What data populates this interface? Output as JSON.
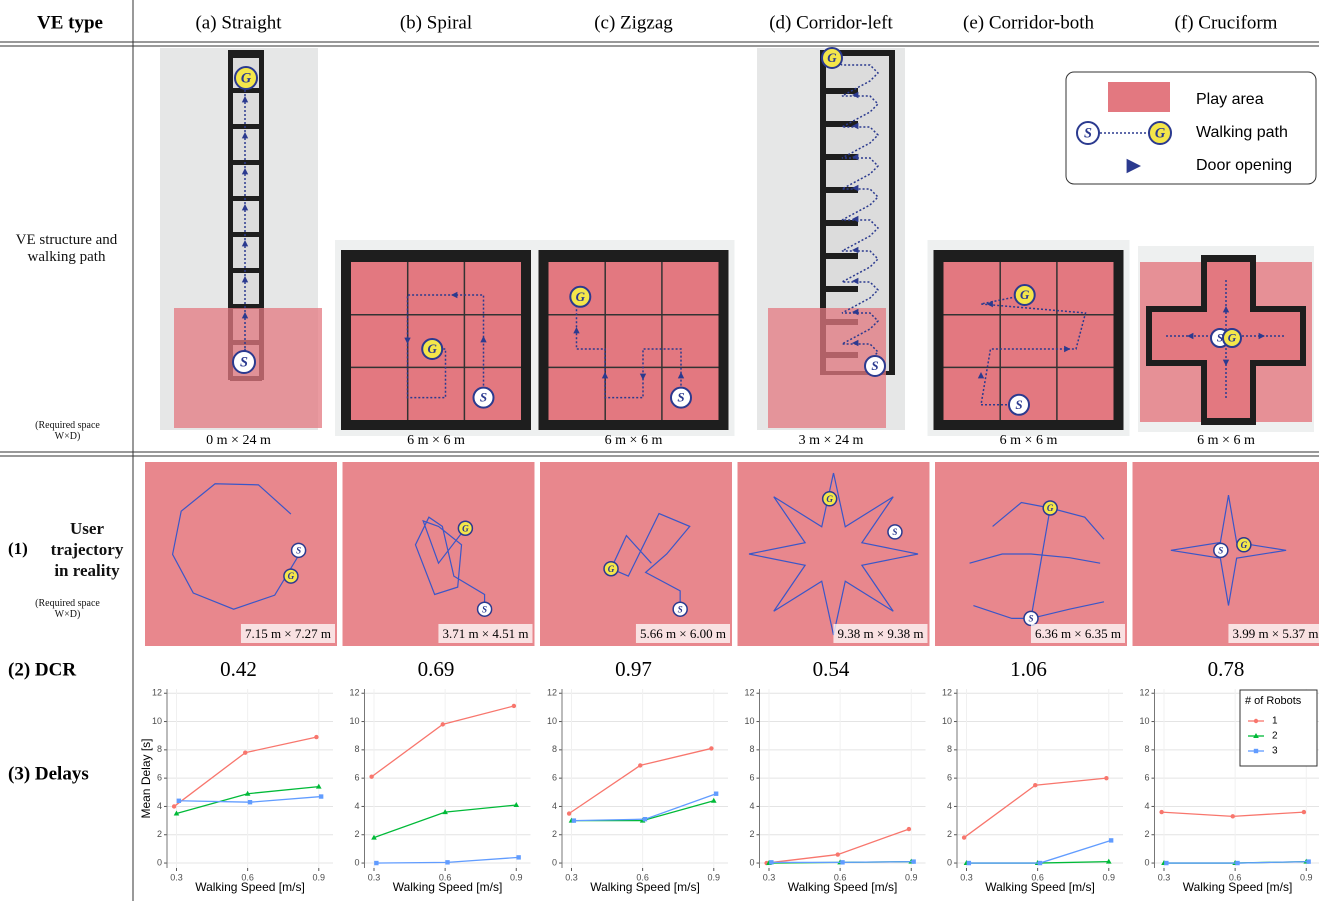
{
  "header": {
    "corner": "VE type",
    "columns": [
      "(a) Straight",
      "(b) Spiral",
      "(c) Zigzag",
      "(d) Corridor-left",
      "(e) Corridor-both",
      "(f) Cruciform"
    ]
  },
  "structure": {
    "label": "VE structure and walking path",
    "note": "(Required space W×D)",
    "sizes": [
      "0 m × 24 m",
      "6 m × 6 m",
      "6 m × 6 m",
      "3 m × 24 m",
      "6 m × 6 m",
      "6 m × 6 m"
    ]
  },
  "legend": {
    "items": [
      "Play area",
      "Walking path",
      "Door opening"
    ]
  },
  "markers": {
    "start": "S",
    "goal": "G"
  },
  "trajectory": {
    "number": "(1)",
    "label": "User trajectory in reality",
    "note": "(Required space W×D)",
    "sizes": [
      "7.15 m × 7.27 m",
      "3.71 m × 4.51 m",
      "5.66 m × 6.00 m",
      "9.38 m × 9.38 m",
      "6.36 m × 6.35 m",
      "3.99 m × 5.37 m"
    ]
  },
  "dcr": {
    "label": "(2) DCR",
    "values": [
      0.42,
      0.69,
      0.97,
      0.54,
      1.06,
      0.78
    ]
  },
  "delays": {
    "label": "(3) Delays"
  },
  "chart_data": [
    {
      "type": "line",
      "ylabel": "Mean Delay [s]",
      "xlabel": "Walking Speed [m/s]",
      "xlim": [
        0.26,
        0.96
      ],
      "xticks": [
        0.3,
        0.6,
        0.9
      ],
      "ylim": [
        -0.35,
        12.3
      ],
      "yticks": [
        0,
        2,
        4,
        6,
        8,
        10,
        12
      ],
      "grid": true,
      "series": [
        {
          "color": "#f8766d",
          "marker": "circle",
          "x": [
            0.29,
            0.59,
            0.89
          ],
          "values": [
            4.0,
            7.8,
            8.9
          ]
        },
        {
          "color": "#00ba38",
          "marker": "triangle",
          "x": [
            0.3,
            0.6,
            0.9
          ],
          "values": [
            3.5,
            4.9,
            5.4
          ]
        },
        {
          "color": "#619cff",
          "marker": "square",
          "x": [
            0.31,
            0.61,
            0.91
          ],
          "values": [
            4.4,
            4.3,
            4.7
          ]
        }
      ]
    },
    {
      "type": "line",
      "xlabel": "Walking Speed [m/s]",
      "xlim": [
        0.26,
        0.96
      ],
      "xticks": [
        0.3,
        0.6,
        0.9
      ],
      "ylim": [
        -0.35,
        12.3
      ],
      "yticks": [
        0,
        2,
        4,
        6,
        8,
        10,
        12
      ],
      "grid": true,
      "series": [
        {
          "color": "#f8766d",
          "marker": "circle",
          "x": [
            0.29,
            0.59,
            0.89
          ],
          "values": [
            6.1,
            9.8,
            11.1
          ]
        },
        {
          "color": "#00ba38",
          "marker": "triangle",
          "x": [
            0.3,
            0.6,
            0.9
          ],
          "values": [
            1.8,
            3.6,
            4.1
          ]
        },
        {
          "color": "#619cff",
          "marker": "square",
          "x": [
            0.31,
            0.61,
            0.91
          ],
          "values": [
            0.0,
            0.05,
            0.4
          ]
        }
      ]
    },
    {
      "type": "line",
      "xlabel": "Walking Speed [m/s]",
      "xlim": [
        0.26,
        0.96
      ],
      "xticks": [
        0.3,
        0.6,
        0.9
      ],
      "ylim": [
        -0.35,
        12.3
      ],
      "yticks": [
        0,
        2,
        4,
        6,
        8,
        10,
        12
      ],
      "grid": true,
      "series": [
        {
          "color": "#f8766d",
          "marker": "circle",
          "x": [
            0.29,
            0.59,
            0.89
          ],
          "values": [
            3.5,
            6.9,
            8.1
          ]
        },
        {
          "color": "#00ba38",
          "marker": "triangle",
          "x": [
            0.3,
            0.6,
            0.9
          ],
          "values": [
            3.0,
            3.0,
            4.4
          ]
        },
        {
          "color": "#619cff",
          "marker": "square",
          "x": [
            0.31,
            0.61,
            0.91
          ],
          "values": [
            3.0,
            3.1,
            4.9
          ]
        }
      ]
    },
    {
      "type": "line",
      "xlabel": "Walking Speed [m/s]",
      "xlim": [
        0.26,
        0.96
      ],
      "xticks": [
        0.3,
        0.6,
        0.9
      ],
      "ylim": [
        -0.35,
        12.3
      ],
      "yticks": [
        0,
        2,
        4,
        6,
        8,
        10,
        12
      ],
      "grid": true,
      "series": [
        {
          "color": "#f8766d",
          "marker": "circle",
          "x": [
            0.29,
            0.59,
            0.89
          ],
          "values": [
            0.0,
            0.6,
            2.4
          ]
        },
        {
          "color": "#00ba38",
          "marker": "triangle",
          "x": [
            0.3,
            0.6,
            0.9
          ],
          "values": [
            0.0,
            0.05,
            0.1
          ]
        },
        {
          "color": "#619cff",
          "marker": "square",
          "x": [
            0.31,
            0.61,
            0.91
          ],
          "values": [
            0.05,
            0.05,
            0.1
          ]
        }
      ]
    },
    {
      "type": "line",
      "xlabel": "Walking Speed [m/s]",
      "xlim": [
        0.26,
        0.96
      ],
      "xticks": [
        0.3,
        0.6,
        0.9
      ],
      "ylim": [
        -0.35,
        12.3
      ],
      "yticks": [
        0,
        2,
        4,
        6,
        8,
        10,
        12
      ],
      "grid": true,
      "series": [
        {
          "color": "#f8766d",
          "marker": "circle",
          "x": [
            0.29,
            0.59,
            0.89
          ],
          "values": [
            1.8,
            5.5,
            6.0
          ]
        },
        {
          "color": "#00ba38",
          "marker": "triangle",
          "x": [
            0.3,
            0.6,
            0.9
          ],
          "values": [
            0.0,
            0.0,
            0.1
          ]
        },
        {
          "color": "#619cff",
          "marker": "square",
          "x": [
            0.31,
            0.61,
            0.91
          ],
          "values": [
            0.0,
            0.0,
            1.6
          ]
        }
      ]
    },
    {
      "type": "line",
      "xlabel": "Walking Speed [m/s]",
      "xlim": [
        0.26,
        0.96
      ],
      "xticks": [
        0.3,
        0.6,
        0.9
      ],
      "ylim": [
        -0.35,
        12.3
      ],
      "yticks": [
        0,
        2,
        4,
        6,
        8,
        10,
        12
      ],
      "grid": true,
      "legend_title": "# of Robots",
      "legend": "upper right",
      "series": [
        {
          "name": "1",
          "color": "#f8766d",
          "marker": "circle",
          "x": [
            0.29,
            0.59,
            0.89
          ],
          "values": [
            3.6,
            3.3,
            3.6
          ]
        },
        {
          "name": "2",
          "color": "#00ba38",
          "marker": "triangle",
          "x": [
            0.3,
            0.6,
            0.9
          ],
          "values": [
            0.0,
            0.0,
            0.1
          ]
        },
        {
          "name": "3",
          "color": "#619cff",
          "marker": "square",
          "x": [
            0.31,
            0.61,
            0.91
          ],
          "values": [
            0.0,
            0.0,
            0.1
          ]
        }
      ]
    }
  ]
}
